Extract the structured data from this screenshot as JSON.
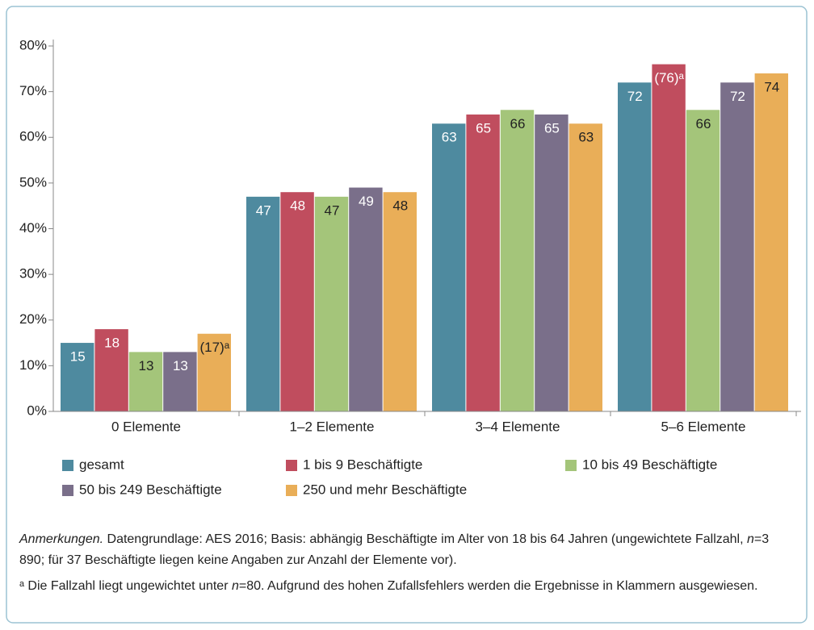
{
  "chart_data": {
    "type": "bar",
    "categories": [
      "0 Elemente",
      "1–2 Elemente",
      "3–4 Elemente",
      "5–6 Elemente"
    ],
    "series": [
      {
        "name": "gesamt",
        "color": "#4e8a9f",
        "label_color": "#ffffff",
        "values": [
          15,
          47,
          63,
          72
        ]
      },
      {
        "name": "1 bis 9 Beschäftigte",
        "color": "#c04d5e",
        "label_color": "#ffffff",
        "values": [
          18,
          48,
          65,
          76
        ],
        "value_labels": [
          "18",
          "48",
          "65",
          "(76)ᵃ"
        ]
      },
      {
        "name": "10 bis 49 Beschäftigte",
        "color": "#a4c57a",
        "label_color": "#222222",
        "values": [
          13,
          47,
          66,
          66
        ]
      },
      {
        "name": "50 bis 249 Beschäftigte",
        "color": "#7a6f8a",
        "label_color": "#ffffff",
        "values": [
          13,
          49,
          65,
          72
        ]
      },
      {
        "name": "250 und mehr Beschäftigte",
        "color": "#e9ae58",
        "label_color": "#222222",
        "values": [
          17,
          48,
          63,
          74
        ],
        "value_labels": [
          "(17)ᵃ",
          "48",
          "63",
          "74"
        ]
      }
    ],
    "ylim": [
      0,
      80
    ],
    "yticks": [
      {
        "value": 0,
        "label": "0%"
      },
      {
        "value": 10,
        "label": "10%"
      },
      {
        "value": 20,
        "label": "20%"
      },
      {
        "value": 30,
        "label": "30%"
      },
      {
        "value": 40,
        "label": "40%"
      },
      {
        "value": 50,
        "label": "50%"
      },
      {
        "value": 60,
        "label": "60%"
      },
      {
        "value": 70,
        "label": "70%"
      },
      {
        "value": 80,
        "label": "80%"
      }
    ],
    "grid": false
  },
  "notes": [
    [
      {
        "t": "Anmerkungen.",
        "i": true
      },
      {
        "t": " Datengrundlage: AES 2016; Basis: abhängig Beschäftigte im Alter von 18 bis 64 Jahren (ungewichtete Fallzahl, "
      },
      {
        "t": "n",
        "i": true
      },
      {
        "t": "=3 890; für 37 Beschäftigte liegen keine Angaben zur Anzahl der Elemente vor)."
      }
    ],
    [
      {
        "t": "ᵃ Die Fallzahl liegt ungewichtet unter "
      },
      {
        "t": "n",
        "i": true
      },
      {
        "t": "=80. Aufgrund des hohen Zufallsfehlers werden die Ergebnisse in Klammern ausgewiesen."
      }
    ]
  ]
}
